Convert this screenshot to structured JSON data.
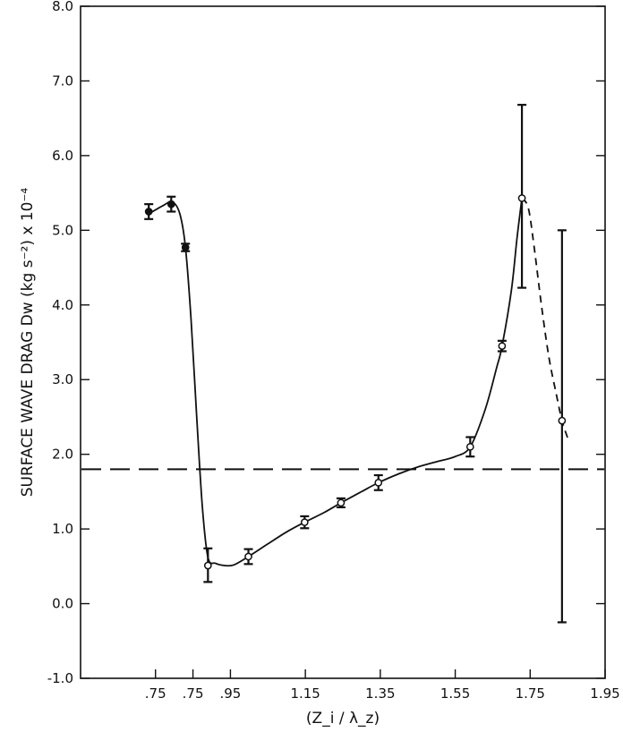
{
  "chart_data": {
    "type": "scatter",
    "title": "",
    "xlabel": "(Z_i / λ_z)",
    "ylabel": "SURFACE  WAVE  DRAG  Dw (kg s⁻²) x 10⁻⁴",
    "xlim": [
      0.55,
      1.95
    ],
    "ylim": [
      -1.0,
      8.0
    ],
    "x_ticks": [
      ".75",
      ".75",
      ".95",
      "1.15",
      "1.35",
      "1.55",
      "1.75",
      "1.95"
    ],
    "y_ticks": [
      "-1.0",
      "0.0",
      "1.0",
      "2.0",
      "3.0",
      "4.0",
      "5.0",
      "6.0",
      "7.0",
      "8.0"
    ],
    "grid": false,
    "reference_line": {
      "y": 1.8,
      "style": "dashed"
    },
    "series": [
      {
        "points": [
          {
            "x": 0.732,
            "y": 5.25,
            "err_lo": 0.1,
            "err_hi": 0.1,
            "marker": "filled"
          },
          {
            "x": 0.792,
            "y": 5.35,
            "err_lo": 0.1,
            "err_hi": 0.1,
            "marker": "filled"
          },
          {
            "x": 0.83,
            "y": 4.77,
            "err_lo": 0.05,
            "err_hi": 0.05,
            "marker": "filled"
          },
          {
            "x": 0.89,
            "y": 0.51,
            "err_lo": 0.22,
            "err_hi": 0.23,
            "marker": "open"
          },
          {
            "x": 0.998,
            "y": 0.63,
            "err_lo": 0.1,
            "err_hi": 0.1,
            "marker": "open"
          },
          {
            "x": 1.148,
            "y": 1.09,
            "err_lo": 0.08,
            "err_hi": 0.08,
            "marker": "open"
          },
          {
            "x": 1.245,
            "y": 1.35,
            "err_lo": 0.06,
            "err_hi": 0.06,
            "marker": "open"
          },
          {
            "x": 1.345,
            "y": 1.62,
            "err_lo": 0.1,
            "err_hi": 0.1,
            "marker": "open"
          },
          {
            "x": 1.59,
            "y": 2.1,
            "err_lo": 0.13,
            "err_hi": 0.13,
            "marker": "open"
          },
          {
            "x": 1.675,
            "y": 3.45,
            "err_lo": 0.07,
            "err_hi": 0.07,
            "marker": "open"
          },
          {
            "x": 1.728,
            "y": 5.43,
            "err_lo": 1.2,
            "err_hi": 1.25,
            "marker": "open"
          },
          {
            "x": 1.835,
            "y": 2.45,
            "err_lo": 2.7,
            "err_hi": 2.55,
            "marker": "open"
          }
        ],
        "curve_solid": [
          [
            0.732,
            5.22
          ],
          [
            0.77,
            5.33
          ],
          [
            0.795,
            5.38
          ],
          [
            0.815,
            5.22
          ],
          [
            0.83,
            4.77
          ],
          [
            0.845,
            3.8
          ],
          [
            0.86,
            2.5
          ],
          [
            0.875,
            1.3
          ],
          [
            0.89,
            0.62
          ],
          [
            0.91,
            0.54
          ],
          [
            0.935,
            0.51
          ],
          [
            0.96,
            0.52
          ],
          [
            0.998,
            0.63
          ],
          [
            1.05,
            0.8
          ],
          [
            1.1,
            0.96
          ],
          [
            1.148,
            1.09
          ],
          [
            1.2,
            1.22
          ],
          [
            1.245,
            1.35
          ],
          [
            1.3,
            1.5
          ],
          [
            1.345,
            1.62
          ],
          [
            1.4,
            1.74
          ],
          [
            1.45,
            1.83
          ],
          [
            1.5,
            1.9
          ],
          [
            1.55,
            1.97
          ],
          [
            1.59,
            2.1
          ],
          [
            1.63,
            2.6
          ],
          [
            1.66,
            3.15
          ],
          [
            1.675,
            3.45
          ],
          [
            1.7,
            4.2
          ],
          [
            1.715,
            4.9
          ],
          [
            1.728,
            5.43
          ]
        ],
        "curve_dashed": [
          [
            1.728,
            5.43
          ],
          [
            1.745,
            5.3
          ],
          [
            1.76,
            4.8
          ],
          [
            1.78,
            4.0
          ],
          [
            1.8,
            3.3
          ],
          [
            1.82,
            2.8
          ],
          [
            1.835,
            2.45
          ],
          [
            1.85,
            2.22
          ]
        ]
      }
    ]
  }
}
